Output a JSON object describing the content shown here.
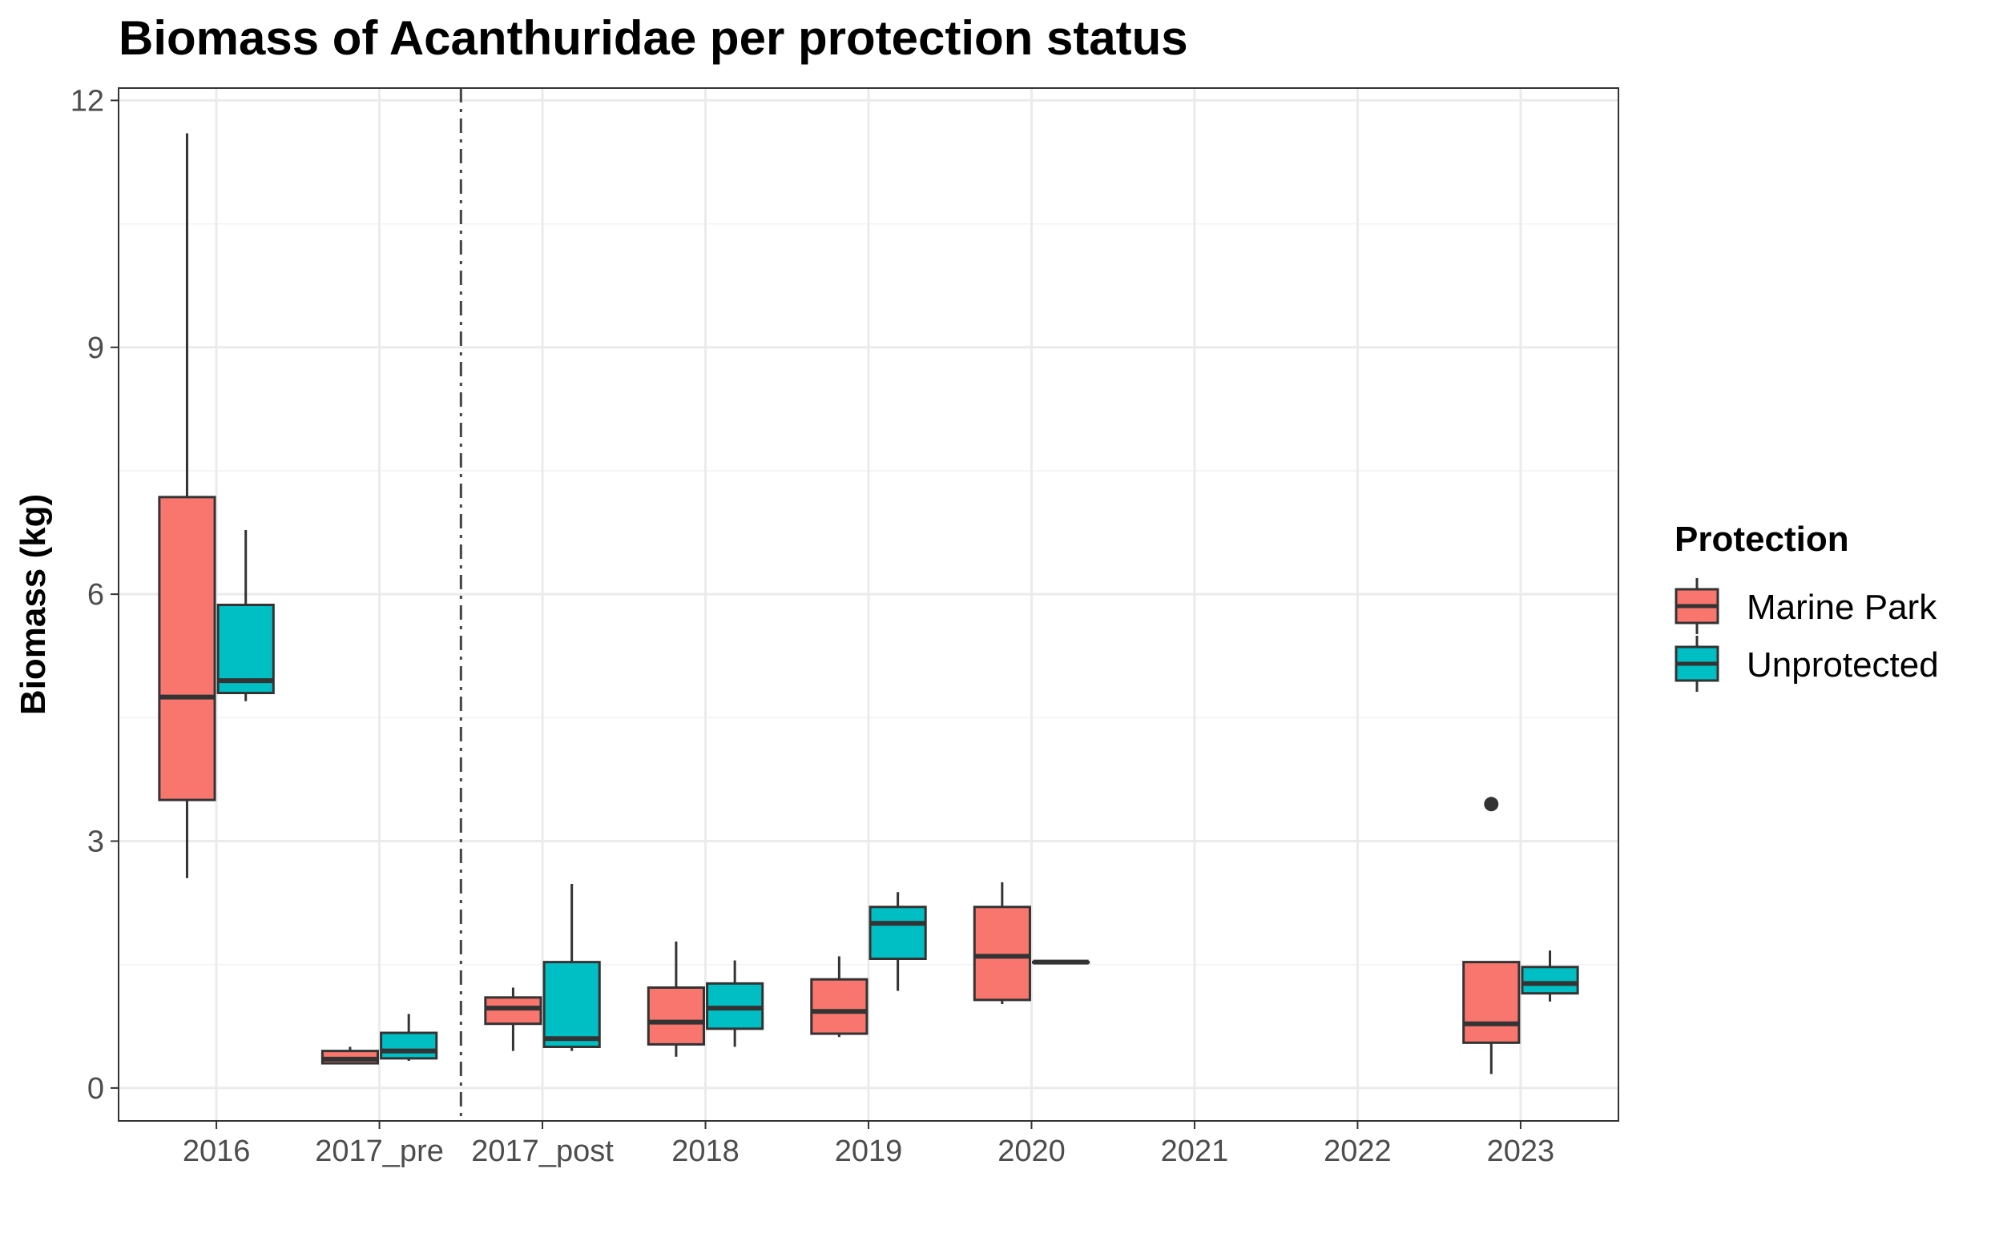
{
  "chart_data": {
    "type": "boxplot",
    "title": "Biomass of Acanthuridae per protection status",
    "xlabel": "",
    "ylabel": "Biomass (kg)",
    "categories": [
      "2016",
      "2017_pre",
      "2017_post",
      "2018",
      "2019",
      "2020",
      "2021",
      "2022",
      "2023"
    ],
    "ylim": [
      -0.4,
      12.15
    ],
    "yticks": [
      0,
      3,
      6,
      9,
      12
    ],
    "yticks_labels": [
      "0",
      "3",
      "6",
      "9",
      "12"
    ],
    "grid": true,
    "vline_between": [
      "2017_pre",
      "2017_post"
    ],
    "legend": {
      "title": "Protection",
      "placement": "right"
    },
    "series": [
      {
        "name": "Marine Park",
        "color": "#F8766D",
        "boxes": [
          {
            "category": "2016",
            "whisker_low": 2.55,
            "q1": 3.5,
            "median": 4.75,
            "q3": 7.18,
            "whisker_high": 11.6
          },
          {
            "category": "2017_pre",
            "whisker_low": 0.3,
            "q1": 0.3,
            "median": 0.35,
            "q3": 0.45,
            "whisker_high": 0.5
          },
          {
            "category": "2017_post",
            "whisker_low": 0.45,
            "q1": 0.78,
            "median": 0.97,
            "q3": 1.1,
            "whisker_high": 1.22
          },
          {
            "category": "2018",
            "whisker_low": 0.38,
            "q1": 0.53,
            "median": 0.8,
            "q3": 1.22,
            "whisker_high": 1.78
          },
          {
            "category": "2019",
            "whisker_low": 0.62,
            "q1": 0.66,
            "median": 0.93,
            "q3": 1.32,
            "whisker_high": 1.6
          },
          {
            "category": "2020",
            "whisker_low": 1.02,
            "q1": 1.07,
            "median": 1.6,
            "q3": 2.2,
            "whisker_high": 2.5
          },
          {
            "category": "2023",
            "whisker_low": 0.17,
            "q1": 0.55,
            "median": 0.78,
            "q3": 1.53,
            "whisker_high": 1.53,
            "outliers": [
              3.45
            ]
          }
        ]
      },
      {
        "name": "Unprotected",
        "color": "#00BFC4",
        "boxes": [
          {
            "category": "2016",
            "whisker_low": 4.7,
            "q1": 4.8,
            "median": 4.95,
            "q3": 5.87,
            "whisker_high": 6.78
          },
          {
            "category": "2017_pre",
            "whisker_low": 0.33,
            "q1": 0.36,
            "median": 0.45,
            "q3": 0.67,
            "whisker_high": 0.9
          },
          {
            "category": "2017_post",
            "whisker_low": 0.45,
            "q1": 0.5,
            "median": 0.6,
            "q3": 1.53,
            "whisker_high": 2.48
          },
          {
            "category": "2018",
            "whisker_low": 0.5,
            "q1": 0.72,
            "median": 0.97,
            "q3": 1.27,
            "whisker_high": 1.55
          },
          {
            "category": "2019",
            "whisker_low": 1.18,
            "q1": 1.57,
            "median": 2.0,
            "q3": 2.2,
            "whisker_high": 2.38
          },
          {
            "category": "2020",
            "whisker_low": 1.53,
            "q1": 1.53,
            "median": 1.53,
            "q3": 1.53,
            "whisker_high": 1.53
          },
          {
            "category": "2023",
            "whisker_low": 1.05,
            "q1": 1.15,
            "median": 1.27,
            "q3": 1.47,
            "whisker_high": 1.67
          }
        ]
      }
    ]
  }
}
